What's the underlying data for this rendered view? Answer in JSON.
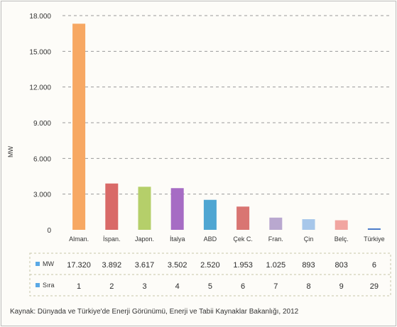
{
  "chart_data": {
    "type": "bar",
    "title": "",
    "ylabel": "MW",
    "ylim": [
      0,
      18000
    ],
    "yticks": [
      "0",
      "3.000",
      "6.000",
      "9.000",
      "12.000",
      "15.000",
      "18.000"
    ],
    "grid": true,
    "categories": [
      "Alman.",
      "İspan.",
      "Japon.",
      "İtalya",
      "ABD",
      "Çek C.",
      "Fran.",
      "Çin",
      "Belç.",
      "Türkiye"
    ],
    "values": [
      17320,
      3892,
      3617,
      3502,
      2520,
      1953,
      1025,
      893,
      803,
      6
    ],
    "colors": [
      "#f7a863",
      "#d96a68",
      "#b5cf6a",
      "#a66cc4",
      "#4fa6d2",
      "#d97572",
      "#b9a8cf",
      "#a7c7ea",
      "#f1a5a0",
      "#4b7cc9"
    ],
    "table": {
      "rows": [
        {
          "legend": "MW",
          "color": "#5aa9e6",
          "cells": [
            "17.320",
            "3.892",
            "3.617",
            "3.502",
            "2.520",
            "1.953",
            "1.025",
            "893",
            "803",
            "6"
          ]
        },
        {
          "legend": "Sıra",
          "color": "#5aa9e6",
          "cells": [
            "1",
            "2",
            "3",
            "4",
            "5",
            "6",
            "7",
            "8",
            "9",
            "29"
          ]
        }
      ]
    }
  },
  "source": "Kaynak: Dünyada ve Türkiye'de Enerji Görünümü, Enerji ve Tabii Kaynaklar Bakanlığı, 2012"
}
